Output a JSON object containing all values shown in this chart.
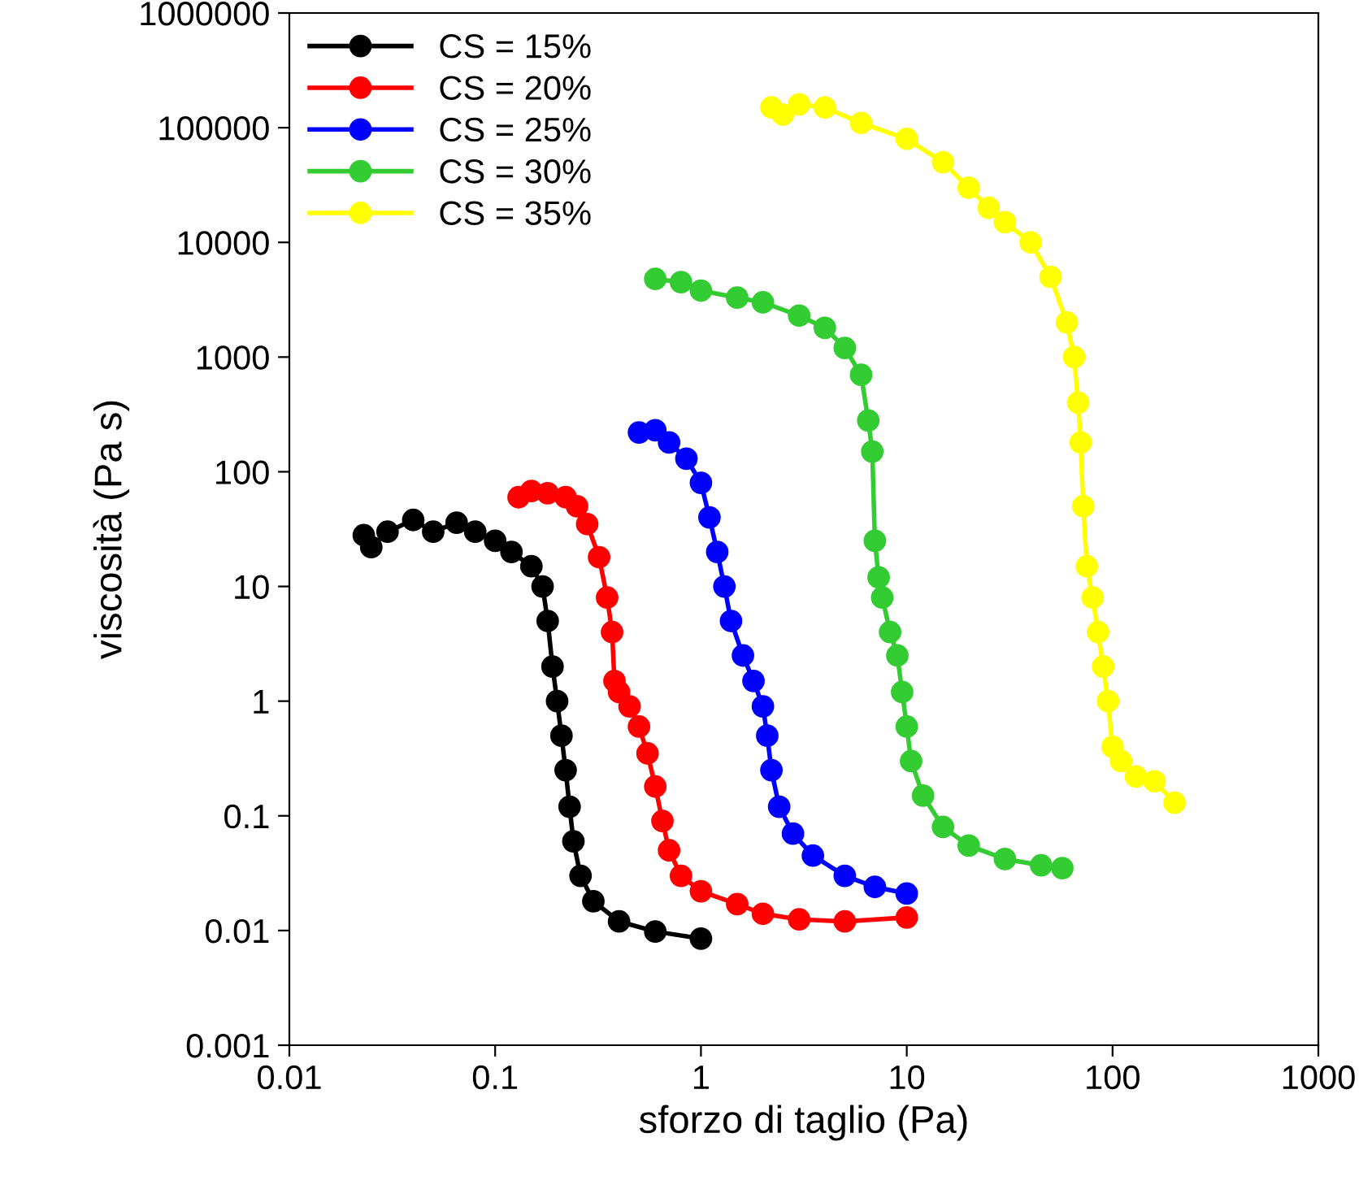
{
  "chart_data": {
    "type": "line",
    "xlabel": "sforzo di taglio (Pa)",
    "ylabel": "viscosità (Pa s)",
    "log": "xy",
    "marker": "circle",
    "line_style": "solid",
    "legend": "top left",
    "grid": false,
    "xlim": [
      0.01,
      1000
    ],
    "xticks": [
      0.01,
      0.1,
      1,
      10,
      100,
      1000
    ],
    "ylim": [
      0.001,
      1000000
    ],
    "yticks": [
      0.001,
      0.01,
      0.1,
      1,
      10,
      100,
      1000,
      10000,
      100000,
      1000000
    ],
    "series": [
      {
        "name": "CS = 15%",
        "color": "#000000",
        "x": [
          0.023,
          0.025,
          0.03,
          0.04,
          0.05,
          0.065,
          0.08,
          0.1,
          0.12,
          0.15,
          0.17,
          0.18,
          0.19,
          0.2,
          0.21,
          0.22,
          0.23,
          0.24,
          0.26,
          0.3,
          0.4,
          0.6,
          1.0
        ],
        "values": [
          28,
          22,
          30,
          38,
          30,
          36,
          30,
          25,
          20,
          15,
          10,
          5,
          2,
          1,
          0.5,
          0.25,
          0.12,
          0.06,
          0.03,
          0.018,
          0.012,
          0.0098,
          0.0085
        ]
      },
      {
        "name": "CS = 20%",
        "color": "#ff0000",
        "x": [
          0.13,
          0.15,
          0.18,
          0.22,
          0.25,
          0.28,
          0.32,
          0.35,
          0.37,
          0.38,
          0.4,
          0.45,
          0.5,
          0.55,
          0.6,
          0.65,
          0.7,
          0.8,
          1,
          1.5,
          2,
          3,
          5,
          10
        ],
        "values": [
          60,
          68,
          65,
          60,
          50,
          35,
          18,
          8,
          4,
          1.5,
          1.2,
          0.9,
          0.6,
          0.35,
          0.18,
          0.09,
          0.05,
          0.03,
          0.022,
          0.017,
          0.014,
          0.0125,
          0.012,
          0.013
        ]
      },
      {
        "name": "CS = 25%",
        "color": "#0000ff",
        "x": [
          0.5,
          0.6,
          0.7,
          0.85,
          1.0,
          1.1,
          1.2,
          1.3,
          1.4,
          1.6,
          1.8,
          2.0,
          2.1,
          2.2,
          2.4,
          2.8,
          3.5,
          5,
          7,
          10
        ],
        "values": [
          220,
          230,
          180,
          130,
          80,
          40,
          20,
          10,
          5,
          2.5,
          1.5,
          0.9,
          0.5,
          0.25,
          0.12,
          0.07,
          0.045,
          0.03,
          0.024,
          0.021
        ]
      },
      {
        "name": "CS = 30%",
        "color": "#33cc33",
        "x": [
          0.6,
          0.8,
          1,
          1.5,
          2,
          3,
          4,
          5,
          6,
          6.5,
          6.8,
          7.0,
          7.3,
          7.6,
          8.3,
          9,
          9.5,
          10,
          10.5,
          12,
          15,
          20,
          30,
          45,
          57
        ],
        "values": [
          4800,
          4500,
          3800,
          3300,
          3000,
          2300,
          1800,
          1200,
          700,
          280,
          150,
          25,
          12,
          8,
          4,
          2.5,
          1.2,
          0.6,
          0.3,
          0.15,
          0.08,
          0.055,
          0.042,
          0.037,
          0.035
        ]
      },
      {
        "name": "CS = 35%",
        "color": "#ffff00",
        "x": [
          2.2,
          2.5,
          3,
          4,
          6,
          10,
          15,
          20,
          25,
          30,
          40,
          50,
          60,
          65,
          68,
          70,
          72,
          75,
          80,
          85,
          90,
          95,
          100,
          110,
          130,
          160,
          200
        ],
        "values": [
          150000,
          130000,
          160000,
          150000,
          110000,
          80000,
          50000,
          30000,
          20000,
          15000,
          10000,
          5000,
          2000,
          1000,
          400,
          180,
          50,
          15,
          8,
          4,
          2,
          1,
          0.4,
          0.3,
          0.22,
          0.2,
          0.13
        ]
      }
    ]
  }
}
